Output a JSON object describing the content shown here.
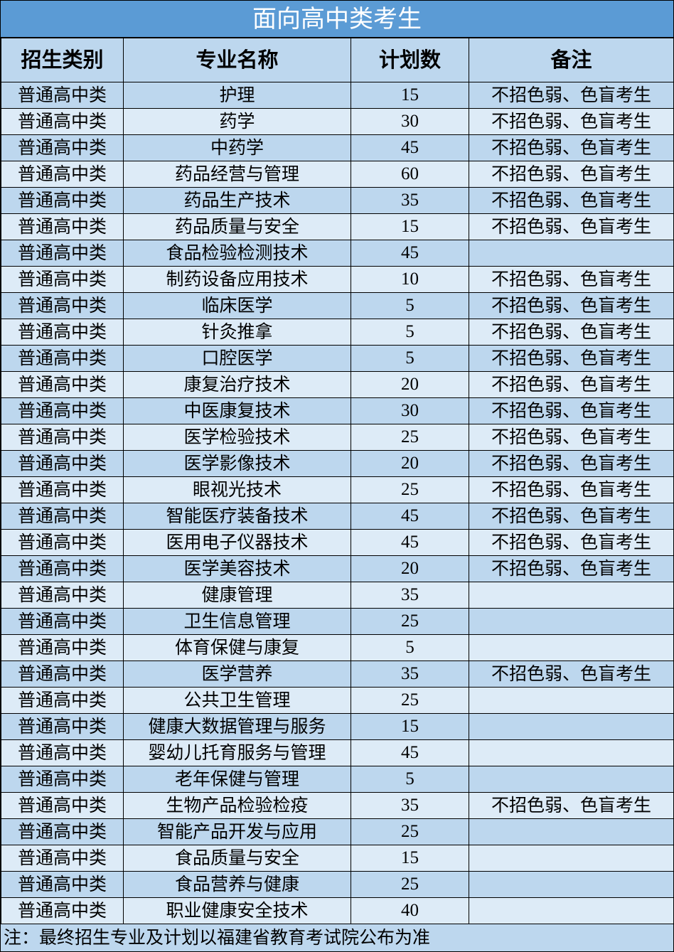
{
  "title": "面向高中类考生",
  "colors": {
    "title_bg": "#5b9bd5",
    "row_dark": "#bdd7ee",
    "row_light": "#ddebf7"
  },
  "headers": [
    "招生类别",
    "专业名称",
    "计划数",
    "备注"
  ],
  "rows": [
    [
      "普通高中类",
      "护理",
      "15",
      "不招色弱、色盲考生"
    ],
    [
      "普通高中类",
      "药学",
      "30",
      "不招色弱、色盲考生"
    ],
    [
      "普通高中类",
      "中药学",
      "45",
      "不招色弱、色盲考生"
    ],
    [
      "普通高中类",
      "药品经营与管理",
      "60",
      "不招色弱、色盲考生"
    ],
    [
      "普通高中类",
      "药品生产技术",
      "35",
      "不招色弱、色盲考生"
    ],
    [
      "普通高中类",
      "药品质量与安全",
      "15",
      "不招色弱、色盲考生"
    ],
    [
      "普通高中类",
      "食品检验检测技术",
      "45",
      ""
    ],
    [
      "普通高中类",
      "制药设备应用技术",
      "10",
      "不招色弱、色盲考生"
    ],
    [
      "普通高中类",
      "临床医学",
      "5",
      "不招色弱、色盲考生"
    ],
    [
      "普通高中类",
      "针灸推拿",
      "5",
      "不招色弱、色盲考生"
    ],
    [
      "普通高中类",
      "口腔医学",
      "5",
      "不招色弱、色盲考生"
    ],
    [
      "普通高中类",
      "康复治疗技术",
      "20",
      "不招色弱、色盲考生"
    ],
    [
      "普通高中类",
      "中医康复技术",
      "30",
      "不招色弱、色盲考生"
    ],
    [
      "普通高中类",
      "医学检验技术",
      "25",
      "不招色弱、色盲考生"
    ],
    [
      "普通高中类",
      "医学影像技术",
      "20",
      "不招色弱、色盲考生"
    ],
    [
      "普通高中类",
      "眼视光技术",
      "25",
      "不招色弱、色盲考生"
    ],
    [
      "普通高中类",
      "智能医疗装备技术",
      "45",
      "不招色弱、色盲考生"
    ],
    [
      "普通高中类",
      "医用电子仪器技术",
      "45",
      "不招色弱、色盲考生"
    ],
    [
      "普通高中类",
      "医学美容技术",
      "20",
      "不招色弱、色盲考生"
    ],
    [
      "普通高中类",
      "健康管理",
      "35",
      ""
    ],
    [
      "普通高中类",
      "卫生信息管理",
      "25",
      ""
    ],
    [
      "普通高中类",
      "体育保健与康复",
      "5",
      ""
    ],
    [
      "普通高中类",
      "医学营养",
      "35",
      "不招色弱、色盲考生"
    ],
    [
      "普通高中类",
      "公共卫生管理",
      "25",
      ""
    ],
    [
      "普通高中类",
      "健康大数据管理与服务",
      "15",
      ""
    ],
    [
      "普通高中类",
      "婴幼儿托育服务与管理",
      "45",
      ""
    ],
    [
      "普通高中类",
      "老年保健与管理",
      "5",
      ""
    ],
    [
      "普通高中类",
      "生物产品检验检疫",
      "35",
      "不招色弱、色盲考生"
    ],
    [
      "普通高中类",
      "智能产品开发与应用",
      "25",
      ""
    ],
    [
      "普通高中类",
      "食品质量与安全",
      "15",
      ""
    ],
    [
      "普通高中类",
      "食品营养与健康",
      "25",
      ""
    ],
    [
      "普通高中类",
      "职业健康安全技术",
      "40",
      ""
    ]
  ],
  "footer": "注：最终招生专业及计划以福建省教育考试院公布为准"
}
